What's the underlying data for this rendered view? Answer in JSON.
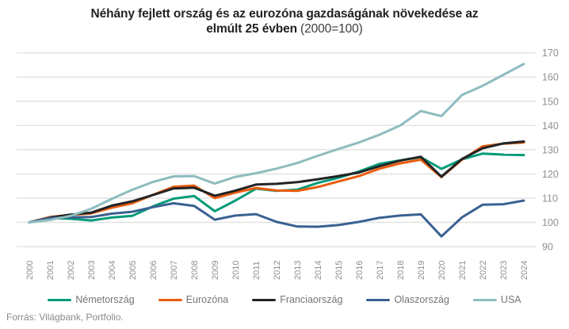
{
  "colors": {
    "background": "#ffffff",
    "grid": "#e1e1e1",
    "axis_text": "#909090",
    "title_text": "#222222",
    "legend_text": "#757575",
    "source_text": "#8a8a8a"
  },
  "chart_data": {
    "type": "line",
    "title_line1": "Néhány fejlett ország és az eurozóna gazdaságának növekedése az",
    "title_line2_bold": "elmúlt 25 évben",
    "title_line2_normal": "(2000=100)",
    "x": [
      2000,
      2001,
      2002,
      2003,
      2004,
      2005,
      2006,
      2007,
      2008,
      2009,
      2010,
      2011,
      2012,
      2013,
      2014,
      2015,
      2016,
      2017,
      2018,
      2019,
      2020,
      2021,
      2022,
      2023,
      2024
    ],
    "ylim": [
      90,
      170
    ],
    "yticks": [
      90,
      100,
      110,
      120,
      130,
      140,
      150,
      160,
      170
    ],
    "y_axis_side": "right",
    "x_label_rotation": -90,
    "grid": "horizontal",
    "legend_position": "bottom",
    "series": [
      {
        "name": "Németország",
        "color": "#009b78",
        "values": [
          100,
          101.7,
          101.5,
          100.8,
          102,
          102.7,
          106.6,
          109.8,
          110.9,
          104.6,
          109,
          113.9,
          113,
          113.5,
          116.3,
          118.4,
          121,
          124.2,
          125.6,
          126.9,
          122.1,
          126,
          128.4,
          128,
          127.8
        ]
      },
      {
        "name": "Eurozóna",
        "color": "#ea5b0c",
        "values": [
          100,
          102.2,
          103.1,
          103.7,
          106.1,
          107.9,
          111.4,
          114.7,
          115.2,
          110,
          112.3,
          114.2,
          113.2,
          113,
          114.6,
          116.9,
          119.1,
          122.2,
          124.4,
          125.9,
          118.7,
          125.9,
          131.4,
          132.5,
          133
        ]
      },
      {
        "name": "Franciaország",
        "color": "#222426",
        "values": [
          100,
          102,
          103.2,
          104,
          106.9,
          108.7,
          111.3,
          114,
          114.3,
          111,
          113.1,
          115.6,
          115.9,
          116.6,
          117.8,
          119.1,
          120.6,
          123.2,
          125.5,
          127.1,
          118.9,
          126.2,
          130.6,
          132.6,
          133.4
        ]
      },
      {
        "name": "Olaszország",
        "color": "#3a6191",
        "values": [
          100,
          101.8,
          102.1,
          102.2,
          103.6,
          104.4,
          106.3,
          107.9,
          106.8,
          101.1,
          102.8,
          103.4,
          100.2,
          98.3,
          98.2,
          98.9,
          100.2,
          101.9,
          102.8,
          103.3,
          94.2,
          102.1,
          107.3,
          107.5,
          109
        ]
      },
      {
        "name": "USA",
        "color": "#8ebcbe",
        "values": [
          100,
          101,
          102.7,
          105.6,
          109.7,
          113.5,
          116.7,
          119,
          119.1,
          116,
          118.8,
          120.3,
          122.2,
          124.5,
          127.5,
          130.3,
          133,
          136.2,
          140,
          146,
          143.9,
          152.6,
          156.4,
          160.9,
          165.4
        ]
      }
    ],
    "source": "Forrás: Világbank, Portfolio."
  }
}
